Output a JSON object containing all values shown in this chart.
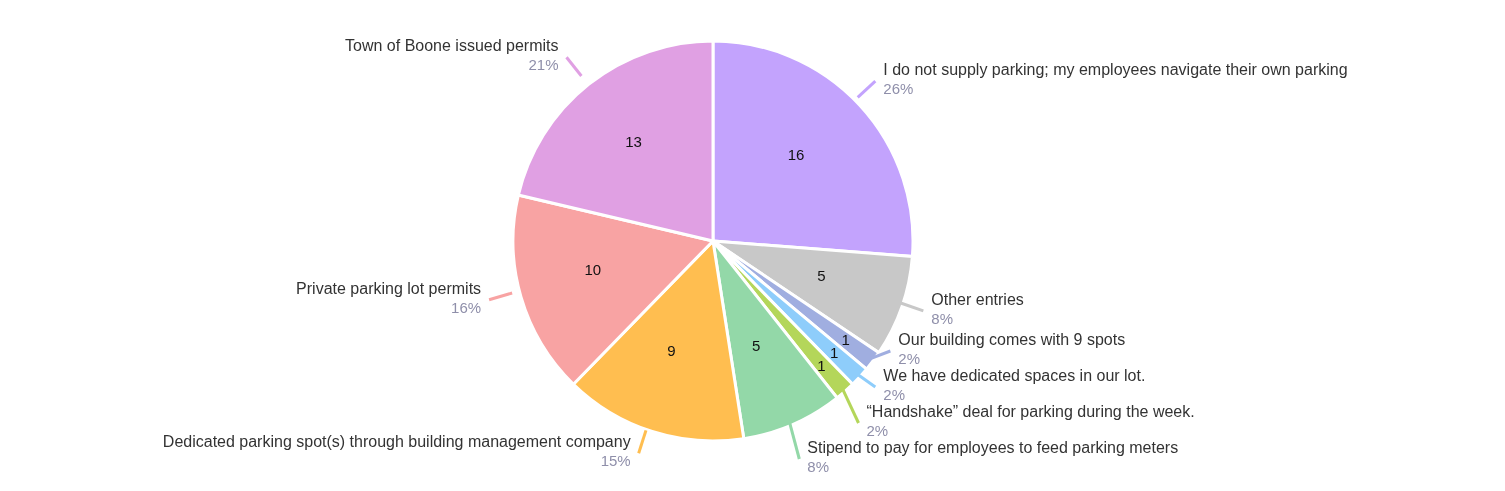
{
  "chart_data": {
    "type": "pie",
    "categories": [
      "I do not supply parking; my employees navigate their own parking",
      "Other entries",
      "Our building comes with 9 spots",
      "We have dedicated spaces in our lot.",
      "“Handshake” deal for parking during the week.",
      "Stipend to pay for employees to feed parking meters",
      "Dedicated parking spot(s) through building management company",
      "Private parking lot permits",
      "Town of Boone issued permits"
    ],
    "values": [
      16,
      5,
      1,
      1,
      1,
      5,
      9,
      10,
      13
    ],
    "annotations": [
      "26%",
      "8%",
      "2%",
      "2%",
      "2%",
      "8%",
      "15%",
      "16%",
      "21%"
    ],
    "colors": [
      "#c3a3fd",
      "#c8c8c8",
      "#a0aee0",
      "#8ecdfb",
      "#b4d65a",
      "#93d8a8",
      "#ffbe50",
      "#f8a3a3",
      "#e0a0e3"
    ],
    "data_labels": true,
    "legend": false
  }
}
